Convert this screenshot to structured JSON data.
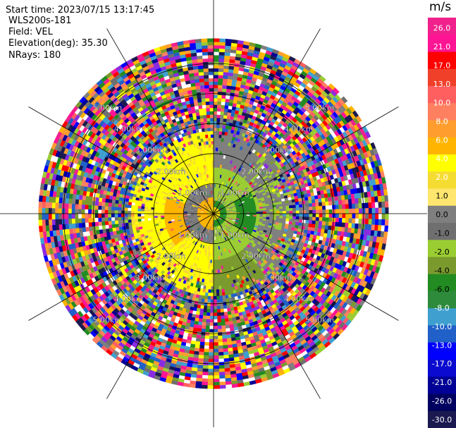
{
  "header": {
    "start_time": "Start time: 2023/07/15 13:17:45",
    "station": "WLS200s-181",
    "field": "Field: VEL",
    "elevation": "Elevation(deg): 35.30",
    "nrays": "NRays: 180"
  },
  "colorbar": {
    "unit": "m/s",
    "ticks": [
      "26.0",
      "21.0",
      "17.0",
      "13.0",
      "10.0",
      "8.0",
      "6.0",
      "4.0",
      "2.0",
      "1.0",
      "0.0",
      "-1.0",
      "-2.0",
      "-4.0",
      "-6.0",
      "-8.0",
      "-10.0",
      "-13.0",
      "-17.0",
      "-21.0",
      "-26.0",
      "-30.0"
    ],
    "colors": [
      "#f0208c",
      "#ff1493",
      "#ff0000",
      "#f0402a",
      "#ff5f5f",
      "#ff8060",
      "#ff9d2f",
      "#ffb400",
      "#ffff00",
      "#f5dc32",
      "#ffe66e",
      "#7f7f7f",
      "#6f6f6f",
      "#9acd32",
      "#7a9a2e",
      "#228b22",
      "#2e8b3c",
      "#3fa0d0",
      "#2060c8",
      "#0000ff",
      "#0a0ad0",
      "#000096",
      "#000060",
      "#1a1a50"
    ]
  },
  "chart_data": {
    "type": "heatmap",
    "projection": "polar (PPI)",
    "field": "VEL",
    "unit": "m/s",
    "range_rings_km": [
      1.0,
      2.0,
      3.0,
      4.0,
      5.0
    ],
    "ring_labels": [
      "1.00km",
      "2.00km",
      "3.00km",
      "4.00km",
      "5.00km"
    ],
    "spoke_angles_deg": [
      0,
      30,
      60,
      90,
      120,
      150,
      180,
      210,
      240,
      270,
      300,
      330
    ],
    "max_range_km": 5.8,
    "value_range": [
      -30.0,
      26.0
    ],
    "pattern_note": ""
  }
}
